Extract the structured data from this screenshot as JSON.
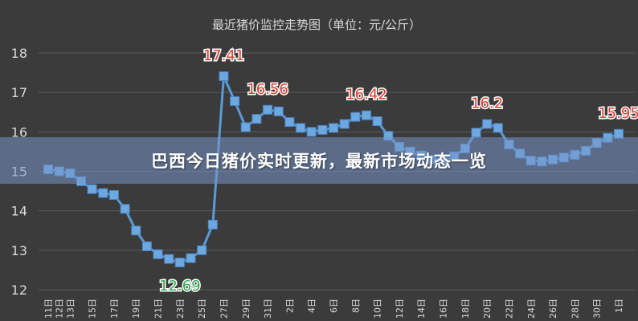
{
  "banner": {
    "headline": "巴西今日猪价实时更新，最新市场动态一览"
  },
  "chart_data": {
    "type": "line",
    "title": "最近猪价监控走势图（单位：元/公斤）",
    "xlabel": "",
    "ylabel": "",
    "ylim": [
      12,
      18
    ],
    "yticks": [
      "12",
      "13",
      "14",
      "15",
      "16",
      "17",
      "18"
    ],
    "grid": true,
    "legend": "none",
    "colors": {
      "line": "#5b9bd5",
      "marker": "#6ea8e0",
      "label_red": "#e03c31",
      "label_green": "#34a853",
      "grid": "#5a5a5a",
      "text": "#d9d9d9"
    },
    "categories": [
      "11日",
      "12日",
      "13日",
      "14日",
      "15日",
      "16日",
      "17日",
      "18日",
      "19日",
      "20日",
      "21日",
      "22日",
      "23日",
      "24日",
      "25日",
      "26日",
      "27日",
      "28日",
      "29日",
      "30日",
      "31日",
      "1日",
      "2日",
      "3日",
      "4日",
      "5日",
      "6日",
      "7日",
      "8日",
      "9日",
      "10日",
      "11日",
      "12日",
      "13日",
      "14日",
      "15日",
      "16日",
      "17日",
      "18日",
      "19日",
      "20日",
      "21日",
      "22日",
      "23日",
      "24日",
      "25日",
      "26日",
      "27日",
      "28日",
      "29日",
      "30日",
      "31日",
      "1日"
    ],
    "series": [
      {
        "values": [
          15.05,
          15.0,
          14.95,
          14.75,
          14.55,
          14.45,
          14.4,
          14.05,
          13.5,
          13.1,
          12.9,
          12.78,
          12.69,
          12.8,
          13.0,
          13.65,
          17.41,
          16.78,
          16.12,
          16.33,
          16.56,
          16.52,
          16.25,
          16.1,
          16.0,
          16.05,
          16.1,
          16.2,
          16.38,
          16.42,
          16.27,
          15.9,
          15.62,
          15.5,
          15.4,
          15.3,
          15.3,
          15.38,
          15.58,
          15.98,
          16.2,
          16.1,
          15.68,
          15.45,
          15.27,
          15.25,
          15.3,
          15.35,
          15.42,
          15.52,
          15.72,
          15.85,
          15.95
        ],
        "point_labels": [
          {
            "index": 12,
            "text": "12.69",
            "color": "green",
            "position": "below"
          },
          {
            "index": 16,
            "text": "17.41",
            "color": "red",
            "position": "above"
          },
          {
            "index": 20,
            "text": "16.56",
            "color": "red",
            "position": "above"
          },
          {
            "index": 29,
            "text": "16.42",
            "color": "red",
            "position": "above"
          },
          {
            "index": 40,
            "text": "16.2",
            "color": "red",
            "position": "above"
          },
          {
            "index": 52,
            "text": "15.95",
            "color": "red",
            "position": "above"
          }
        ]
      }
    ],
    "visible_xticks": [
      "11日",
      "12日",
      "13日",
      "15日",
      "17日",
      "19日",
      "21日",
      "23日",
      "25日",
      "27日",
      "29日",
      "31日",
      "2日",
      "4日",
      "6日",
      "8日",
      "10日",
      "12日",
      "14日",
      "16日",
      "18日",
      "20日",
      "22日",
      "24日",
      "26日",
      "28日",
      "30日",
      "1日"
    ]
  }
}
